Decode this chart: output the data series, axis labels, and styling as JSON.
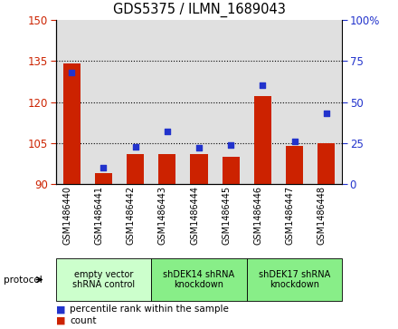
{
  "title": "GDS5375 / ILMN_1689043",
  "samples": [
    "GSM1486440",
    "GSM1486441",
    "GSM1486442",
    "GSM1486443",
    "GSM1486444",
    "GSM1486445",
    "GSM1486446",
    "GSM1486447",
    "GSM1486448"
  ],
  "counts": [
    134,
    94,
    101,
    101,
    101,
    100,
    122,
    104,
    105
  ],
  "percentile_ranks": [
    68,
    10,
    23,
    32,
    22,
    24,
    60,
    26,
    43
  ],
  "ylim_left": [
    90,
    150
  ],
  "ylim_right": [
    0,
    100
  ],
  "yticks_left": [
    90,
    105,
    120,
    135,
    150
  ],
  "yticks_right": [
    0,
    25,
    50,
    75,
    100
  ],
  "bar_color": "#cc2200",
  "dot_color": "#2233cc",
  "left_tick_color": "#cc2200",
  "right_tick_color": "#2233cc",
  "groups": [
    {
      "label": "empty vector\nshRNA control",
      "start": 0,
      "end": 3,
      "color": "#ccffcc"
    },
    {
      "label": "shDEK14 shRNA\nknockdown",
      "start": 3,
      "end": 6,
      "color": "#88ee88"
    },
    {
      "label": "shDEK17 shRNA\nknockdown",
      "start": 6,
      "end": 9,
      "color": "#88ee88"
    }
  ],
  "legend_count_label": "count",
  "legend_percentile_label": "percentile rank within the sample",
  "protocol_label": "protocol",
  "background_color": "#e0e0e0",
  "bar_width": 0.55,
  "dot_size": 22
}
